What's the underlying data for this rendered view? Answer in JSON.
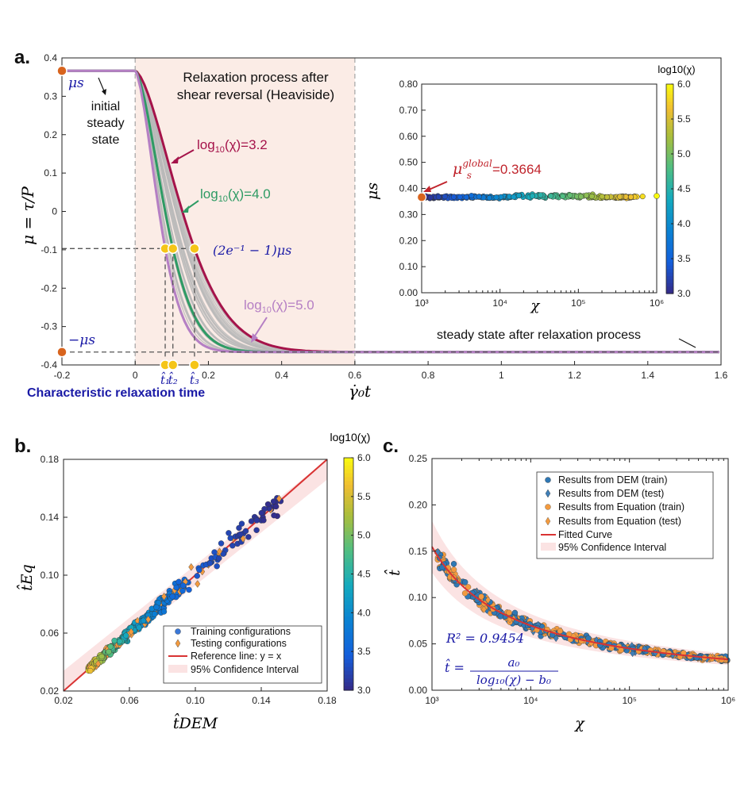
{
  "colors": {
    "dem_red": "#a5134a",
    "green": "#2e9b64",
    "purple": "#b57fc4",
    "blue_text": "#1a1aa6",
    "fit_red": "#d93333",
    "ci_fill": "#fbe3e3",
    "gray_curves": "#b9b9b9",
    "orange": "#f39a3e"
  },
  "panel_labels": {
    "a": "a.",
    "b": "b.",
    "c": "c."
  },
  "chart_data": [
    {
      "id": "a",
      "type": "line",
      "xlabel": "γ̇₀t",
      "ylabel": "μ = τ/P",
      "xlim": [
        -0.2,
        1.6
      ],
      "ylim": [
        -0.4,
        0.4
      ],
      "x_ticks": [
        "-0.2",
        "0",
        "0.2",
        "0.4",
        "0.6",
        "0.8",
        "1",
        "1.2",
        "1.4",
        "1.6"
      ],
      "y_ticks": [
        "0.4",
        "0.3",
        "0.2",
        "0.1",
        "0",
        "-0.1",
        "-0.2",
        "-0.3",
        "-0.4"
      ],
      "mu_s": 0.3664,
      "shaded_region": {
        "from": 0,
        "to": 0.6,
        "label_line1": "Relaxation process after",
        "label_line2": "shear reversal (Heaviside)"
      },
      "series": [
        {
          "name": "log10(χ)=3.2",
          "label_prefix": "log",
          "label_sub": "10",
          "label_suffix": "(χ)=3.2",
          "tau": 0.162
        },
        {
          "name": "log10(χ)=4.0",
          "label_prefix": "log",
          "label_sub": "10",
          "label_suffix": "(χ)=4.0",
          "tau": 0.103
        },
        {
          "name": "log10(χ)=5.0",
          "label_prefix": "log",
          "label_sub": "10",
          "label_suffix": "(χ)=5.0",
          "tau": 0.082
        }
      ],
      "characteristic_points": [
        {
          "label": "t̂₁",
          "x": 0.082
        },
        {
          "label": "t̂₂",
          "x": 0.103
        },
        {
          "label": "t̂₃",
          "x": 0.162
        }
      ],
      "annotations": {
        "mu_s": "μs",
        "neg_mu_s": "−μs",
        "initial_1": "initial",
        "initial_2": "steady",
        "initial_3": "state",
        "decay_level": "(2e⁻¹ − 1)μs",
        "steady_after": "steady state after relaxation process",
        "char_time": "Characteristic relaxation time"
      },
      "inset": {
        "type": "scatter",
        "xscale": "log",
        "xlim": [
          1000,
          1000000
        ],
        "ylim": [
          0,
          0.8
        ],
        "xlabel": "χ",
        "ylabel": "μs",
        "y_ticks": [
          "0.80",
          "0.70",
          "0.60",
          "0.50",
          "0.40",
          "0.30",
          "0.20",
          "0.10",
          "0.00"
        ],
        "x_ticks": [
          "10³",
          "10⁴",
          "10⁵",
          "10⁶"
        ],
        "annotation_value": "=0.3664",
        "annotation_sym": "μ",
        "annotation_sup": "global",
        "annotation_sub": "s",
        "mean_value": 0.3664,
        "colorbar": {
          "title": "log10(χ)",
          "min": 3.0,
          "max": 6.0,
          "ticks": [
            "6.0",
            "5.5",
            "5.0",
            "4.5",
            "4.0",
            "3.5",
            "3.0"
          ]
        }
      }
    },
    {
      "id": "b",
      "type": "scatter",
      "xlabel": "t̂DEM",
      "ylabel": "t̂Eq",
      "xlim": [
        0.02,
        0.18
      ],
      "ylim": [
        0.02,
        0.18
      ],
      "x_ticks": [
        "0.02",
        "0.06",
        "0.10",
        "0.14",
        "0.18"
      ],
      "y_ticks": [
        "0.18",
        "0.14",
        "0.10",
        "0.06",
        "0.02"
      ],
      "reference_line": "y = x",
      "legend": [
        "Training configurations",
        "Testing configurations",
        "Reference line: y = x",
        "95% Confidence Interval"
      ],
      "colorbar": {
        "title": "log10(χ)",
        "min": 3.0,
        "max": 6.0,
        "ticks": [
          "6.0",
          "5.5",
          "5.0",
          "4.5",
          "4.0",
          "3.5",
          "3.0"
        ]
      },
      "approx_range": {
        "x": [
          0.035,
          0.15
        ],
        "y": [
          0.035,
          0.165
        ]
      }
    },
    {
      "id": "c",
      "type": "scatter",
      "xscale": "log",
      "xlabel": "χ",
      "ylabel": "t̂",
      "xlim": [
        1000,
        1000000
      ],
      "ylim": [
        0,
        0.25
      ],
      "x_ticks": [
        "10³",
        "10⁴",
        "10⁵",
        "10⁶"
      ],
      "y_ticks": [
        "0.25",
        "0.20",
        "0.15",
        "0.10",
        "0.05",
        "0.00"
      ],
      "fitted_curve": {
        "a0": 0.127,
        "b0": 2.18,
        "formula": "t̂ = a0 / (log10(χ) − b0)"
      },
      "r_squared": "R² = 0.9454",
      "equation_lhs": "t̂ =",
      "equation_num": "a₀",
      "equation_den": "log₁₀(χ) − b₀",
      "legend": [
        "Results from DEM (train)",
        "Results from DEM (test)",
        "Results from Equation (train)",
        "Results from Equation (test)",
        "Fitted Curve",
        "95% Confidence Interval"
      ]
    }
  ]
}
